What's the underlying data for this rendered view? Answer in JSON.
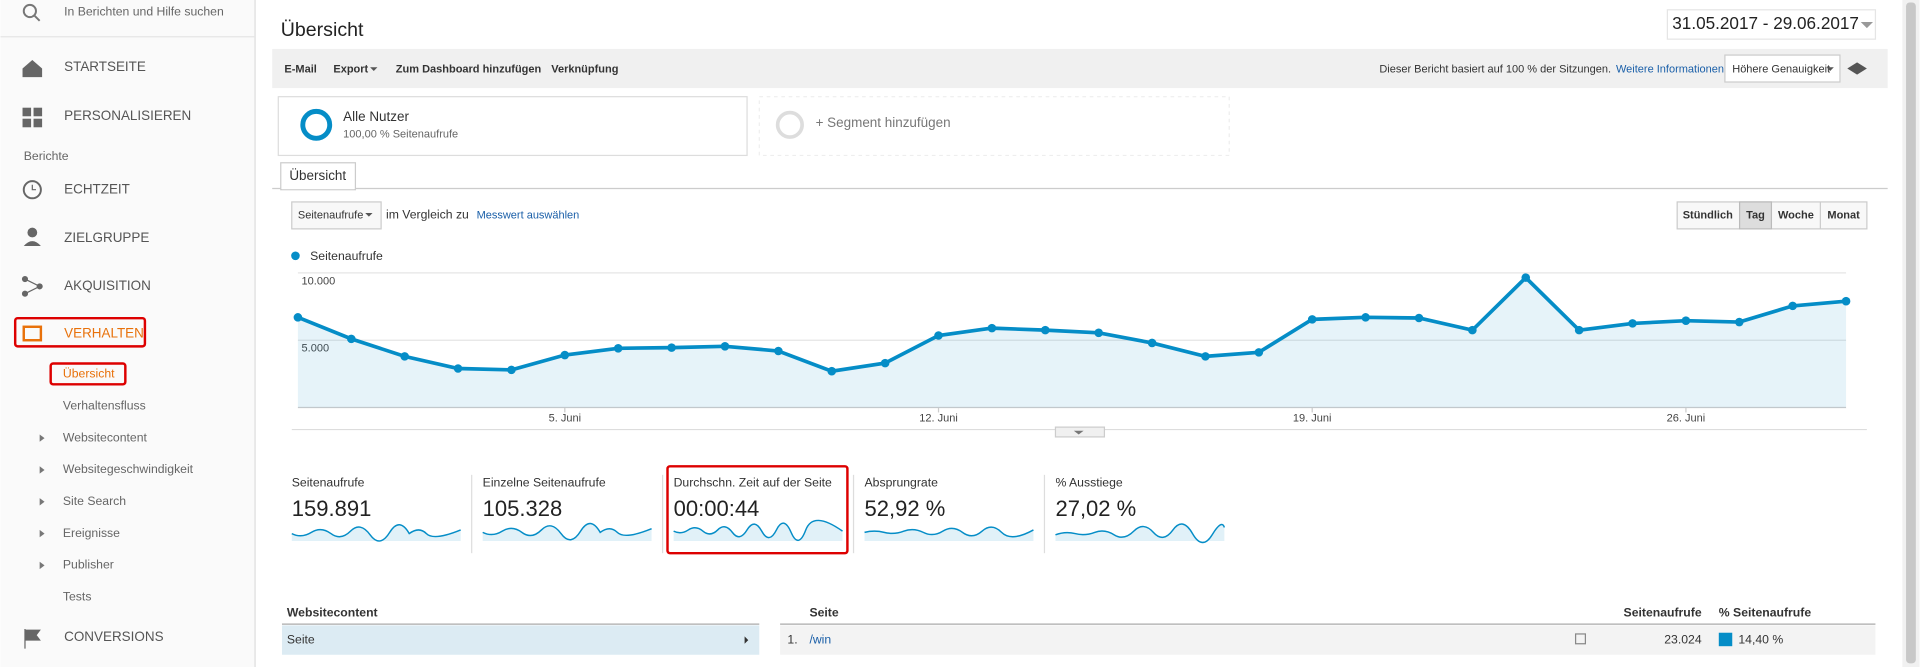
{
  "sidebar": {
    "search": "In Berichten und Hilfe suchen",
    "items": [
      "STARTSEITE",
      "PERSONALISIEREN"
    ],
    "section": "Berichte",
    "reports": [
      "ECHTZEIT",
      "ZIELGRUPPE",
      "AKQUISITION",
      "VERHALTEN"
    ],
    "sub": [
      "Übersicht",
      "Verhaltensfluss",
      "Websitecontent",
      "Websitegeschwindigkeit",
      "Site Search",
      "Ereignisse",
      "Publisher",
      "Tests"
    ],
    "conversions": "CONVERSIONS"
  },
  "header": {
    "title": "Übersicht",
    "date_range": "31.05.2017 - 29.06.2017"
  },
  "toolbar": {
    "actions": [
      "E-Mail",
      "Export",
      "Zum Dashboard hinzufügen",
      "Verknüpfung"
    ],
    "note": "Dieser Bericht basiert auf 100 % der Sitzungen.",
    "link": "Weitere Informationen",
    "precision": "Höhere Genauigkeit"
  },
  "segments": {
    "name": "Alle Nutzer",
    "detail": "100,00 % Seitenaufrufe",
    "add": "+ Segment hinzufügen"
  },
  "tab": "Übersicht",
  "controls": {
    "metric": "Seitenaufrufe",
    "compare": "im Vergleich zu",
    "select": "Messwert auswählen",
    "periods": [
      "Stündlich",
      "Tag",
      "Woche",
      "Monat"
    ]
  },
  "chart_data": {
    "type": "line",
    "categories": [
      null,
      null,
      null,
      null,
      null,
      "5. Juni",
      null,
      null,
      null,
      null,
      null,
      null,
      "12. Juni",
      null,
      null,
      null,
      null,
      null,
      null,
      "19. Juni",
      null,
      null,
      null,
      null,
      null,
      null,
      "26. Juni",
      null,
      null,
      null
    ],
    "series": [
      {
        "name": "Seitenaufrufe",
        "color": "#058dc7",
        "values": [
          6700,
          5100,
          3800,
          2900,
          2800,
          3900,
          4400,
          4450,
          4550,
          4200,
          2700,
          3300,
          5350,
          5900,
          5750,
          5550,
          4800,
          3800,
          4100,
          6550,
          6700,
          6650,
          5750,
          9650,
          5750,
          6250,
          6450,
          6350,
          7550,
          7900
        ]
      }
    ],
    "ylim": [
      0,
      10000
    ],
    "yticks": [
      {
        "value": 5000,
        "label": "5.000"
      },
      {
        "value": 10000,
        "label": "10.000"
      }
    ],
    "grid": true,
    "area": true
  },
  "metrics": [
    {
      "label": "Seitenaufrufe",
      "value": "159.891"
    },
    {
      "label": "Einzelne Seitenaufrufe",
      "value": "105.328"
    },
    {
      "label": "Durchschn. Zeit auf der Seite",
      "value": "00:00:44"
    },
    {
      "label": "Absprungrate",
      "value": "52,92 %"
    },
    {
      "label": "% Ausstiege",
      "value": "27,02 %"
    }
  ],
  "table": {
    "left_header": "Websitecontent",
    "left_row": "Seite",
    "headers": [
      "Seite",
      "Seitenaufrufe",
      "% Seitenaufrufe"
    ],
    "rows": [
      [
        "1.",
        "/win",
        "23.024",
        "14,40 %"
      ]
    ]
  }
}
